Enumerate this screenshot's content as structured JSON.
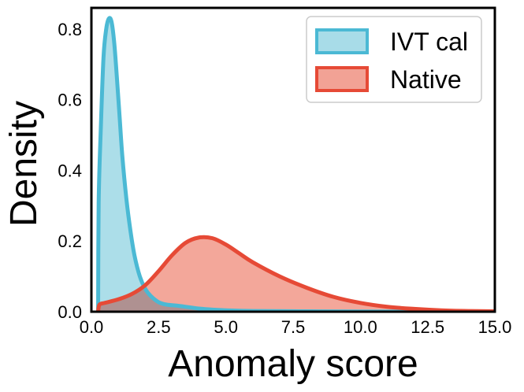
{
  "chart_data": {
    "type": "area",
    "title": "",
    "xlabel": "Anomaly score",
    "ylabel": "Density",
    "xlim": [
      0.0,
      15.0
    ],
    "ylim": [
      0.0,
      0.86
    ],
    "xticks": [
      "0.0",
      "2.5",
      "5.0",
      "7.5",
      "10.0",
      "12.5",
      "15.0"
    ],
    "yticks": [
      "0.0",
      "0.2",
      "0.4",
      "0.6",
      "0.8"
    ],
    "grid": false,
    "legend_position": "top-right",
    "series": [
      {
        "name": "IVT cal",
        "color": "#4bb9d4",
        "fill": "#a8dce8",
        "x": [
          0.25,
          0.27,
          0.35,
          0.45,
          0.55,
          0.65,
          0.75,
          0.85,
          0.95,
          1.05,
          1.15,
          1.3,
          1.45,
          1.6,
          1.8,
          2.0,
          2.2,
          2.5,
          2.8,
          3.2,
          3.6,
          4.0,
          4.5,
          5.0,
          6.0,
          8.0,
          10.0,
          15.0
        ],
        "values": [
          0.0,
          0.31,
          0.52,
          0.72,
          0.8,
          0.83,
          0.82,
          0.76,
          0.66,
          0.55,
          0.44,
          0.32,
          0.23,
          0.16,
          0.1,
          0.065,
          0.045,
          0.027,
          0.02,
          0.017,
          0.013,
          0.009,
          0.006,
          0.004,
          0.002,
          0.001,
          0.0005,
          0.0
        ]
      },
      {
        "name": "Native",
        "color": "#e64a36",
        "fill": "#f2a295",
        "x": [
          0.25,
          0.3,
          0.5,
          1.0,
          1.5,
          2.0,
          2.5,
          3.0,
          3.5,
          4.0,
          4.5,
          5.0,
          5.5,
          6.0,
          7.0,
          8.0,
          9.0,
          10.0,
          11.0,
          12.0,
          13.0,
          14.0,
          15.0
        ],
        "values": [
          0.0,
          0.02,
          0.025,
          0.035,
          0.05,
          0.075,
          0.115,
          0.16,
          0.195,
          0.21,
          0.208,
          0.19,
          0.165,
          0.14,
          0.1,
          0.068,
          0.042,
          0.025,
          0.014,
          0.008,
          0.004,
          0.002,
          0.001
        ]
      }
    ]
  }
}
